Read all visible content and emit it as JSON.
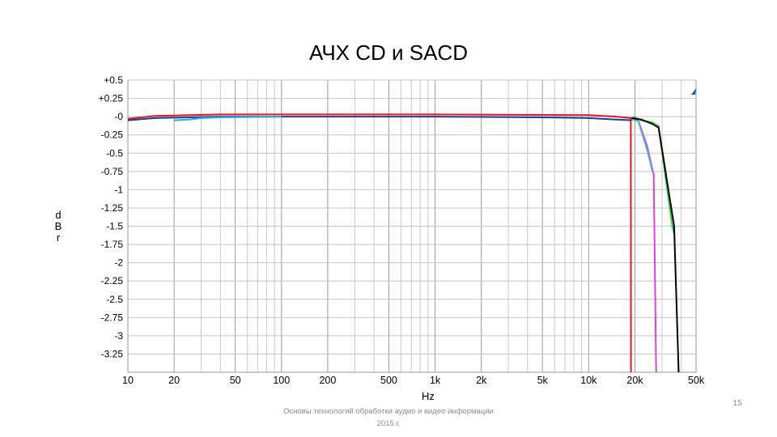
{
  "slide": {
    "title": "АЧХ CD  и SACD",
    "footer_line1": "Основы технологий обработки аудио и видео информации",
    "footer_line2": "2015 г.",
    "page_number": "15"
  },
  "chart_data": {
    "type": "line",
    "title": "АЧХ CD  и SACD",
    "xlabel": "Hz",
    "ylabel": "dBr",
    "x_scale": "log",
    "xlim": [
      10,
      50000
    ],
    "ylim": [
      -3.5,
      0.5
    ],
    "grid": true,
    "y_ticks": [
      {
        "value": 0.5,
        "label": "+0.5"
      },
      {
        "value": 0.25,
        "label": "+0.25"
      },
      {
        "value": 0,
        "label": "-0"
      },
      {
        "value": -0.25,
        "label": "-0.25"
      },
      {
        "value": -0.5,
        "label": "-0.5"
      },
      {
        "value": -0.75,
        "label": "-0.75"
      },
      {
        "value": -1,
        "label": "-1"
      },
      {
        "value": -1.25,
        "label": "-1.25"
      },
      {
        "value": -1.5,
        "label": "-1.5"
      },
      {
        "value": -1.75,
        "label": "-1.75"
      },
      {
        "value": -2,
        "label": "-2"
      },
      {
        "value": -2.25,
        "label": "-2.25"
      },
      {
        "value": -2.5,
        "label": "-2.5"
      },
      {
        "value": -2.75,
        "label": "-2.75"
      },
      {
        "value": -3,
        "label": "-3"
      },
      {
        "value": -3.25,
        "label": "-3.25"
      }
    ],
    "x_ticks": [
      {
        "value": 10,
        "label": "10"
      },
      {
        "value": 20,
        "label": "20"
      },
      {
        "value": 50,
        "label": "50"
      },
      {
        "value": 100,
        "label": "100"
      },
      {
        "value": 200,
        "label": "200"
      },
      {
        "value": 500,
        "label": "500"
      },
      {
        "value": 1000,
        "label": "1k"
      },
      {
        "value": 2000,
        "label": "2k"
      },
      {
        "value": 5000,
        "label": "5k"
      },
      {
        "value": 10000,
        "label": "10k"
      },
      {
        "value": 20000,
        "label": "20k"
      },
      {
        "value": 50000,
        "label": "50k"
      }
    ],
    "series": [
      {
        "color": "#e8141e",
        "points": [
          [
            10,
            -0.03
          ],
          [
            15,
            0.01
          ],
          [
            25,
            0.02
          ],
          [
            40,
            0.03
          ],
          [
            100,
            0.03
          ],
          [
            1000,
            0.03
          ],
          [
            10000,
            0.02
          ],
          [
            15000,
            0.0
          ],
          [
            18800,
            -0.02
          ],
          [
            18850,
            -3.5
          ]
        ]
      },
      {
        "color": "#1a3c9c",
        "points": [
          [
            10,
            -0.05
          ],
          [
            15,
            -0.02
          ],
          [
            25,
            -0.01
          ],
          [
            40,
            0.0
          ],
          [
            100,
            0.0
          ],
          [
            1000,
            0.0
          ],
          [
            5000,
            -0.01
          ],
          [
            10000,
            -0.02
          ],
          [
            15000,
            -0.04
          ],
          [
            19000,
            -0.05
          ]
        ]
      },
      {
        "color": "#29abe2",
        "points": [
          [
            20,
            -0.05
          ],
          [
            25,
            -0.04
          ],
          [
            30,
            -0.02
          ],
          [
            40,
            -0.01
          ],
          [
            100,
            0.0
          ]
        ]
      },
      {
        "color": "#2ecc40",
        "points": [
          [
            19500,
            0.0
          ],
          [
            22000,
            -0.05
          ],
          [
            26000,
            -0.08
          ],
          [
            28500,
            -0.13
          ],
          [
            35000,
            -1.5
          ],
          [
            36000,
            -1.6
          ]
        ]
      },
      {
        "color": "#e040e0",
        "points": [
          [
            19500,
            -0.01
          ],
          [
            21000,
            -0.05
          ],
          [
            24000,
            -0.4
          ],
          [
            26500,
            -0.8
          ],
          [
            27500,
            -3.5
          ]
        ]
      },
      {
        "color": "#55aadd",
        "points": [
          [
            19000,
            -0.04
          ],
          [
            21000,
            -0.06
          ],
          [
            24000,
            -0.45
          ],
          [
            26000,
            -0.75
          ]
        ]
      },
      {
        "color": "#000000",
        "points": [
          [
            19000,
            -0.02
          ],
          [
            22000,
            -0.04
          ],
          [
            26000,
            -0.1
          ],
          [
            28500,
            -0.15
          ],
          [
            36000,
            -1.5
          ],
          [
            38500,
            -3.5
          ]
        ]
      }
    ]
  }
}
